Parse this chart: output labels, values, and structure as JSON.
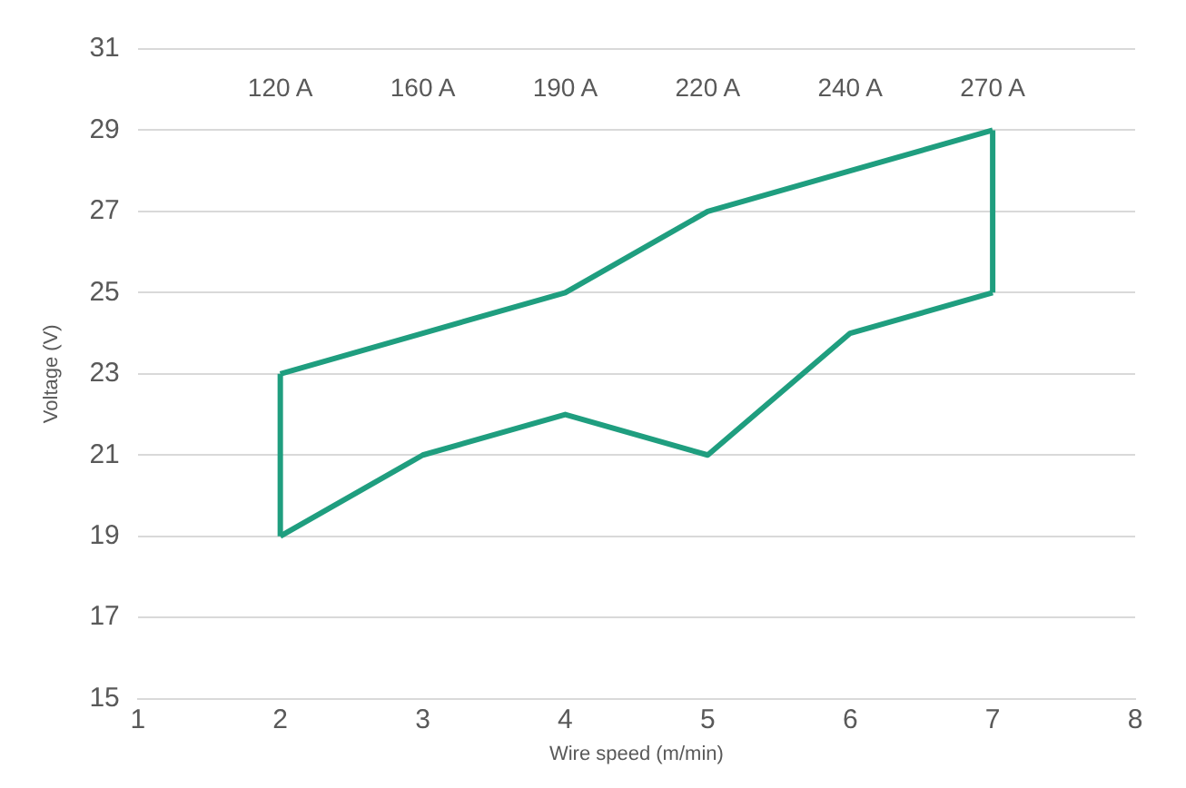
{
  "chart_data": {
    "type": "line",
    "xlabel": "Wire speed (m/min)",
    "ylabel": "Voltage (V)",
    "series": [
      {
        "color": "#1f9e7f",
        "x": [
          2,
          3,
          4,
          5,
          6,
          7
        ],
        "values": [
          23,
          24,
          25,
          27,
          28,
          29
        ]
      },
      {
        "color": "#1f9e7f",
        "x": [
          2,
          3,
          4,
          5,
          6,
          7
        ],
        "values": [
          19,
          21,
          22,
          21,
          24,
          25
        ]
      },
      {
        "color": "#1f9e7f",
        "x": [
          2,
          2
        ],
        "values": [
          19,
          23
        ]
      },
      {
        "color": "#1f9e7f",
        "x": [
          7,
          7
        ],
        "values": [
          25,
          29
        ]
      }
    ],
    "xlim": [
      1,
      8
    ],
    "xticks": [
      1,
      2,
      3,
      4,
      5,
      6,
      7,
      8
    ],
    "ylim": [
      15,
      31
    ],
    "yticks": [
      15,
      17,
      19,
      21,
      23,
      25,
      27,
      29,
      31
    ],
    "grid": "y",
    "legend": false,
    "marker": "none",
    "line_style": "solid",
    "annotations": [
      "120 A",
      "160 A",
      "190 A",
      "220 A",
      "240 A",
      "270 A"
    ]
  }
}
